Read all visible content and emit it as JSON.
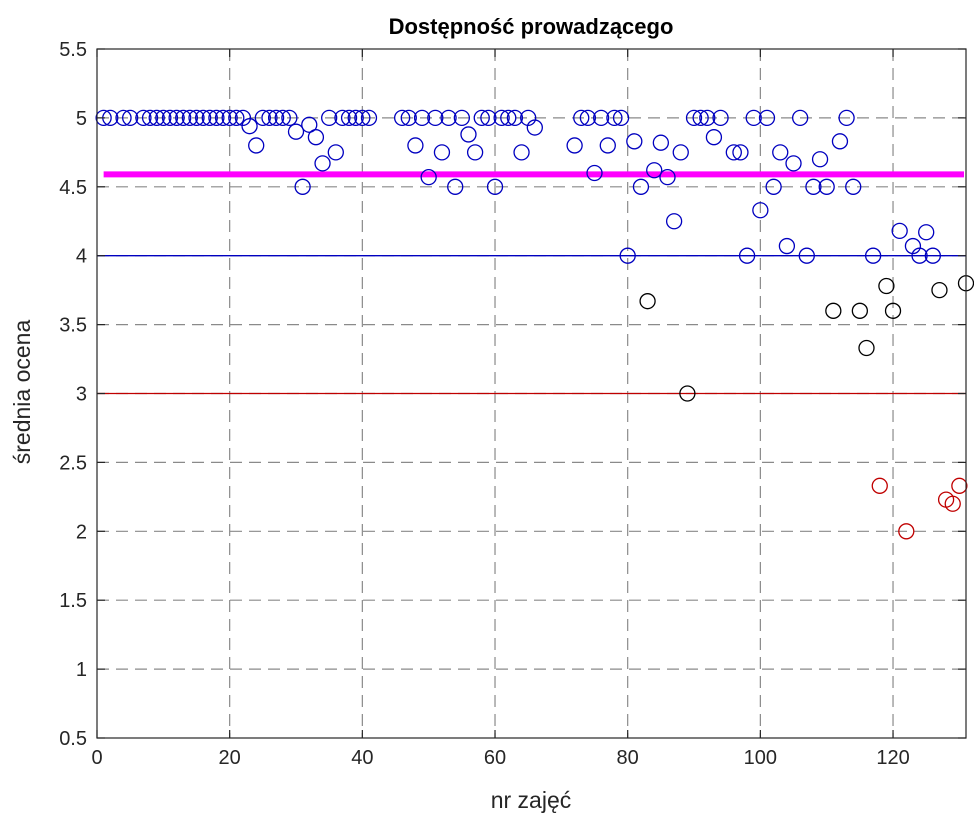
{
  "chart_data": {
    "type": "scatter",
    "title": "Dostępność prowadzącego",
    "xlabel": "nr zajęć",
    "ylabel": "średnia ocena",
    "xlim": [
      0,
      131
    ],
    "ylim": [
      0.5,
      5.5
    ],
    "x_ticks": [
      0,
      20,
      40,
      60,
      80,
      100,
      120
    ],
    "y_ticks": [
      0.5,
      1,
      1.5,
      2,
      2.5,
      3,
      3.5,
      4,
      4.5,
      5,
      5.5
    ],
    "grid": true,
    "grid_style": "dashed",
    "colors": {
      "above4": "#0000c0",
      "between3and4": "#000000",
      "below3": "#c00000",
      "mean_line": "#ff00ff",
      "ref4": "#0000c0",
      "ref3": "#c00000"
    },
    "reference_lines": [
      {
        "y": 4.59,
        "color": "#ff00ff",
        "style": "thick"
      },
      {
        "y": 4,
        "color": "#0000c0"
      },
      {
        "y": 3,
        "color": "#c00000"
      }
    ],
    "series": [
      {
        "color": "#0000c0",
        "points": [
          [
            1,
            5
          ],
          [
            2,
            5
          ],
          [
            4,
            5
          ],
          [
            5,
            5
          ],
          [
            7,
            5
          ],
          [
            8,
            5
          ],
          [
            9,
            5
          ],
          [
            10,
            5
          ],
          [
            11,
            5
          ],
          [
            12,
            5
          ],
          [
            13,
            5
          ],
          [
            14,
            5
          ],
          [
            15,
            5
          ],
          [
            16,
            5
          ],
          [
            17,
            5
          ],
          [
            18,
            5
          ],
          [
            19,
            5
          ],
          [
            20,
            5
          ],
          [
            21,
            5
          ],
          [
            22,
            5
          ],
          [
            23,
            4.94
          ],
          [
            24,
            4.8
          ],
          [
            25,
            5
          ],
          [
            26,
            5
          ],
          [
            27,
            5
          ],
          [
            28,
            5
          ],
          [
            29,
            5
          ],
          [
            30,
            4.9
          ],
          [
            31,
            4.5
          ],
          [
            32,
            4.95
          ],
          [
            33,
            4.86
          ],
          [
            34,
            4.67
          ],
          [
            35,
            5
          ],
          [
            36,
            4.75
          ],
          [
            37,
            5
          ],
          [
            38,
            5
          ],
          [
            39,
            5
          ],
          [
            40,
            5
          ],
          [
            41,
            5
          ],
          [
            46,
            5
          ],
          [
            47,
            5
          ],
          [
            48,
            4.8
          ],
          [
            49,
            5
          ],
          [
            50,
            4.57
          ],
          [
            51,
            5
          ],
          [
            52,
            4.75
          ],
          [
            53,
            5
          ],
          [
            54,
            4.5
          ],
          [
            55,
            5
          ],
          [
            56,
            4.88
          ],
          [
            57,
            4.75
          ],
          [
            58,
            5
          ],
          [
            59,
            5
          ],
          [
            60,
            4.5
          ],
          [
            61,
            5
          ],
          [
            62,
            5
          ],
          [
            63,
            5
          ],
          [
            64,
            4.75
          ],
          [
            65,
            5
          ],
          [
            66,
            4.93
          ],
          [
            72,
            4.8
          ],
          [
            73,
            5
          ],
          [
            74,
            5
          ],
          [
            75,
            4.6
          ],
          [
            76,
            5
          ],
          [
            77,
            4.8
          ],
          [
            78,
            5
          ],
          [
            79,
            5
          ],
          [
            80,
            4
          ],
          [
            81,
            4.83
          ],
          [
            82,
            4.5
          ],
          [
            84,
            4.62
          ],
          [
            85,
            4.82
          ],
          [
            86,
            4.57
          ],
          [
            87,
            4.25
          ],
          [
            88,
            4.75
          ],
          [
            90,
            5
          ],
          [
            91,
            5
          ],
          [
            92,
            5
          ],
          [
            93,
            4.86
          ],
          [
            94,
            5
          ],
          [
            96,
            4.75
          ],
          [
            97,
            4.75
          ],
          [
            98,
            4
          ],
          [
            99,
            5
          ],
          [
            100,
            4.33
          ],
          [
            101,
            5
          ],
          [
            102,
            4.5
          ],
          [
            103,
            4.75
          ],
          [
            104,
            4.07
          ],
          [
            105,
            4.67
          ],
          [
            106,
            5
          ],
          [
            107,
            4
          ],
          [
            108,
            4.5
          ],
          [
            109,
            4.7
          ],
          [
            110,
            4.5
          ],
          [
            112,
            4.83
          ],
          [
            113,
            5
          ],
          [
            114,
            4.5
          ],
          [
            117,
            4
          ],
          [
            121,
            4.18
          ],
          [
            123,
            4.07
          ],
          [
            124,
            4
          ],
          [
            125,
            4.17
          ],
          [
            126,
            4
          ]
        ]
      },
      {
        "color": "#000000",
        "points": [
          [
            83,
            3.67
          ],
          [
            89,
            3
          ],
          [
            111,
            3.6
          ],
          [
            115,
            3.6
          ],
          [
            116,
            3.33
          ],
          [
            119,
            3.78
          ],
          [
            120,
            3.6
          ],
          [
            127,
            3.75
          ],
          [
            131,
            3.8
          ]
        ]
      },
      {
        "color": "#c00000",
        "points": [
          [
            118,
            2.33
          ],
          [
            122,
            2
          ],
          [
            128,
            2.23
          ],
          [
            129,
            2.2
          ],
          [
            130,
            2.33
          ]
        ]
      }
    ]
  }
}
